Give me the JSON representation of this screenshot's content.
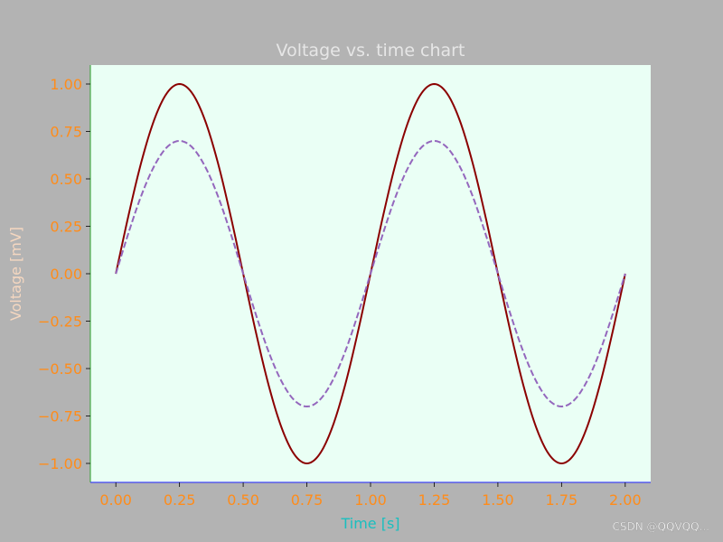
{
  "chart_data": {
    "type": "line",
    "title": "Voltage vs. time chart",
    "xlabel": "Time [s]",
    "ylabel": "Voltage [mV]",
    "xlim": [
      -0.1,
      2.1
    ],
    "ylim": [
      -1.1,
      1.1
    ],
    "xticks": [
      "0.00",
      "0.25",
      "0.50",
      "0.75",
      "1.00",
      "1.25",
      "1.50",
      "1.75",
      "2.00"
    ],
    "yticks": [
      "1.00",
      "0.75",
      "0.50",
      "0.25",
      "0.00",
      "−0.25",
      "−0.50",
      "−0.75",
      "−1.00"
    ],
    "grid": false,
    "series": [
      {
        "color": "#8b0000",
        "style": "solid",
        "x": [
          0,
          0.05,
          0.1,
          0.15,
          0.2,
          0.25,
          0.3,
          0.35,
          0.4,
          0.45,
          0.5,
          0.55,
          0.6,
          0.65,
          0.7,
          0.75,
          0.8,
          0.85,
          0.9,
          0.95,
          1.0,
          1.05,
          1.1,
          1.15,
          1.2,
          1.25,
          1.3,
          1.35,
          1.4,
          1.45,
          1.5,
          1.55,
          1.6,
          1.65,
          1.7,
          1.75,
          1.8,
          1.85,
          1.9,
          1.95,
          2.0
        ],
        "y": [
          0,
          0.309,
          0.588,
          0.809,
          0.951,
          1.0,
          0.951,
          0.809,
          0.588,
          0.309,
          0,
          -0.309,
          -0.588,
          -0.809,
          -0.951,
          -1.0,
          -0.951,
          -0.809,
          -0.588,
          -0.309,
          0,
          0.309,
          0.588,
          0.809,
          0.951,
          1.0,
          0.951,
          0.809,
          0.588,
          0.309,
          0,
          -0.309,
          -0.588,
          -0.809,
          -0.951,
          -1.0,
          -0.951,
          -0.809,
          -0.588,
          -0.309,
          0
        ]
      },
      {
        "color": "#9467bd",
        "style": "dashed",
        "x": [
          0,
          0.05,
          0.1,
          0.15,
          0.2,
          0.25,
          0.3,
          0.35,
          0.4,
          0.45,
          0.5,
          0.55,
          0.6,
          0.65,
          0.7,
          0.75,
          0.8,
          0.85,
          0.9,
          0.95,
          1.0,
          1.05,
          1.1,
          1.15,
          1.2,
          1.25,
          1.3,
          1.35,
          1.4,
          1.45,
          1.5,
          1.55,
          1.6,
          1.65,
          1.7,
          1.75,
          1.8,
          1.85,
          1.9,
          1.95,
          2.0
        ],
        "y": [
          0,
          0.216,
          0.412,
          0.566,
          0.666,
          0.7,
          0.666,
          0.566,
          0.412,
          0.216,
          0,
          -0.216,
          -0.412,
          -0.566,
          -0.666,
          -0.7,
          -0.666,
          -0.566,
          -0.412,
          -0.216,
          0,
          0.216,
          0.412,
          0.566,
          0.666,
          0.7,
          0.666,
          0.566,
          0.412,
          0.216,
          0,
          -0.216,
          -0.412,
          -0.566,
          -0.666,
          -0.7,
          -0.666,
          -0.566,
          -0.412,
          -0.216,
          0
        ]
      }
    ],
    "colors": {
      "figure_background": "#b3b3b3",
      "plot_background": "#eafff5",
      "title": "#e6e6e6",
      "xlabel": "#19bfbf",
      "ylabel": "#f5d7c0",
      "tick_labels": "#ff8c1a",
      "left_spine": "#2ca02c",
      "bottom_spine": "#1f1fff"
    }
  },
  "watermark": "CSDN @QQVQQ..."
}
